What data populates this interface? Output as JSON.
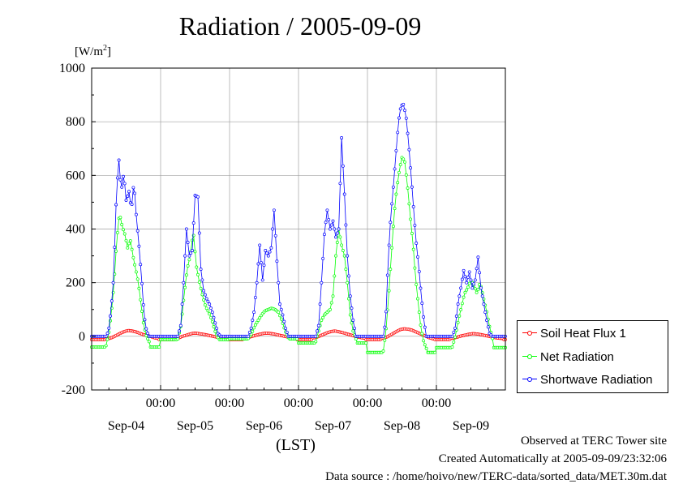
{
  "title": "Radiation / 2005-09-09",
  "unit_label": "[W/m",
  "unit_sup": "2",
  "unit_close": "]",
  "x_axis_label": "(LST)",
  "footer": {
    "line1": "Observed at TERC Tower site",
    "line2": "Created Automatically at 2005-09-09/23:32:06",
    "line3": "Data source : /home/hoivo/new/TERC-data/sorted_data/MET.30m.dat"
  },
  "chart_data": {
    "type": "line",
    "title": "Radiation / 2005-09-09",
    "xlabel": "(LST)",
    "ylabel": "[W/m2]",
    "ylim": [
      -200,
      1000
    ],
    "yticks": [
      -200,
      0,
      200,
      400,
      600,
      800,
      1000
    ],
    "xlim_days": [
      0,
      6
    ],
    "time_tick_label": "00:00",
    "day_labels": [
      "Sep-04",
      "Sep-05",
      "Sep-06",
      "Sep-07",
      "Sep-08",
      "Sep-09"
    ],
    "grid": true,
    "legend_position": "bottom-right",
    "series": [
      {
        "name": "Soil Heat Flux 1",
        "color": "#ff0000",
        "night_level": -12,
        "peaks": [
          {
            "day": 0,
            "shape": [
              -10,
              -8,
              -2,
              5,
              12,
              18,
              22,
              20,
              17,
              12,
              7,
              3,
              0,
              -5,
              -8
            ]
          },
          {
            "day": 1,
            "shape": [
              -8,
              -6,
              0,
              4,
              8,
              12,
              11,
              9,
              7,
              4,
              1,
              -2,
              -5,
              -7,
              -8
            ]
          },
          {
            "day": 2,
            "shape": [
              -8,
              -5,
              -1,
              3,
              7,
              10,
              12,
              11,
              9,
              6,
              3,
              0,
              -3,
              -6,
              -8
            ]
          },
          {
            "day": 3,
            "shape": [
              -6,
              -4,
              2,
              8,
              14,
              18,
              20,
              17,
              14,
              10,
              6,
              2,
              -2,
              -5,
              -7
            ]
          },
          {
            "day": 4,
            "shape": [
              -8,
              -5,
              2,
              10,
              18,
              25,
              28,
              27,
              24,
              18,
              12,
              6,
              0,
              -6,
              -10
            ]
          },
          {
            "day": 5,
            "shape": [
              -8,
              -6,
              -2,
              2,
              5,
              8,
              10,
              9,
              7,
              4,
              1,
              -2,
              -5,
              -7,
              -8
            ]
          }
        ]
      },
      {
        "name": "Net Radiation",
        "color": "#00ff00",
        "night_levels": [
          -40,
          -12,
          -10,
          -25,
          -60,
          -42,
          -8
        ],
        "peaks": [
          {
            "day": 0,
            "shape": [
              -35,
              10,
              90,
              200,
              360,
              460,
              410,
              380,
              330,
              360,
              300,
              250,
              200,
              120,
              40,
              0,
              -20
            ]
          },
          {
            "day": 1,
            "shape": [
              -10,
              40,
              150,
              250,
              300,
              390,
              260,
              200,
              150,
              110,
              90,
              60,
              20,
              -5
            ]
          },
          {
            "day": 2,
            "shape": [
              -8,
              10,
              40,
              60,
              80,
              95,
              100,
              105,
              100,
              90,
              60,
              20,
              -5
            ]
          },
          {
            "day": 3,
            "shape": [
              -20,
              20,
              60,
              80,
              90,
              100,
              150,
              300,
              400,
              340,
              300,
              200,
              80,
              20,
              -10
            ]
          },
          {
            "day": 4,
            "shape": [
              -55,
              20,
              150,
              300,
              450,
              550,
              620,
              670,
              650,
              560,
              450,
              350,
              220,
              120,
              30,
              -20,
              -45
            ]
          },
          {
            "day": 5,
            "shape": [
              -40,
              0,
              60,
              110,
              160,
              180,
              210,
              190,
              160,
              200,
              150,
              100,
              40,
              -8
            ]
          }
        ]
      },
      {
        "name": "Shortwave Radiation",
        "color": "#0000ff",
        "night_level": 0,
        "peaks": [
          {
            "day": 0,
            "shape": [
              0,
              20,
              100,
              220,
              500,
              670,
              540,
              610,
              500,
              545,
              470,
              580,
              440,
              340,
              220,
              80,
              20,
              0
            ]
          },
          {
            "day": 1,
            "shape": [
              0,
              40,
              200,
              400,
              300,
              320,
              525,
              520,
              250,
              170,
              140,
              120,
              90,
              50,
              10,
              0
            ]
          },
          {
            "day": 2,
            "shape": [
              0,
              30,
              90,
              200,
              340,
              210,
              320,
              300,
              330,
              470,
              280,
              120,
              80,
              30,
              0
            ]
          },
          {
            "day": 3,
            "shape": [
              0,
              40,
              200,
              380,
              470,
              400,
              430,
              370,
              400,
              740,
              530,
              300,
              150,
              60,
              0
            ]
          },
          {
            "day": 4,
            "shape": [
              0,
              60,
              300,
              450,
              560,
              680,
              800,
              860,
              865,
              820,
              720,
              600,
              470,
              350,
              260,
              150,
              60,
              0
            ]
          },
          {
            "day": 5,
            "shape": [
              0,
              30,
              120,
              180,
              245,
              200,
              240,
              180,
              210,
              295,
              180,
              120,
              60,
              10,
              0
            ]
          }
        ]
      }
    ]
  }
}
